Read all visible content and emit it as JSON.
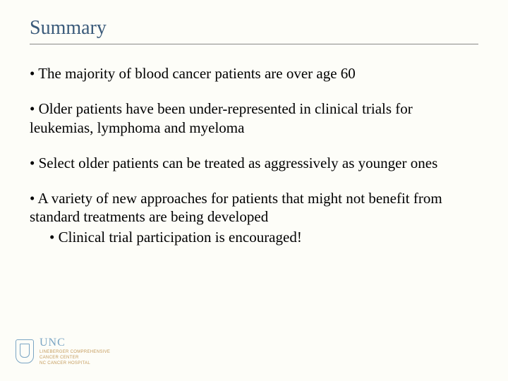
{
  "title": "Summary",
  "title_color": "#3a5a7a",
  "title_fontsize": 28,
  "body_fontsize": 21,
  "body_color": "#000000",
  "background_color": "#fdfdf8",
  "underline_color": "#888888",
  "bullets": [
    {
      "text": "The majority of blood cancer patients are over age 60"
    },
    {
      "text": "Older patients have been under-represented in clinical trials for leukemias, lymphoma and myeloma"
    },
    {
      "text": "Select older patients can be treated as aggressively as younger ones"
    },
    {
      "text": "A variety of new approaches for patients that might not benefit from standard treatments are being developed",
      "sub": "Clinical trial participation is encouraged!"
    }
  ],
  "logo": {
    "unc": "UNC",
    "line1": "LINEBERGER COMPREHENSIVE",
    "line2": "CANCER CENTER",
    "line3": "NC CANCER HOSPITAL",
    "crest_color": "#7aa5c4",
    "sub_color": "#c49a5a"
  }
}
